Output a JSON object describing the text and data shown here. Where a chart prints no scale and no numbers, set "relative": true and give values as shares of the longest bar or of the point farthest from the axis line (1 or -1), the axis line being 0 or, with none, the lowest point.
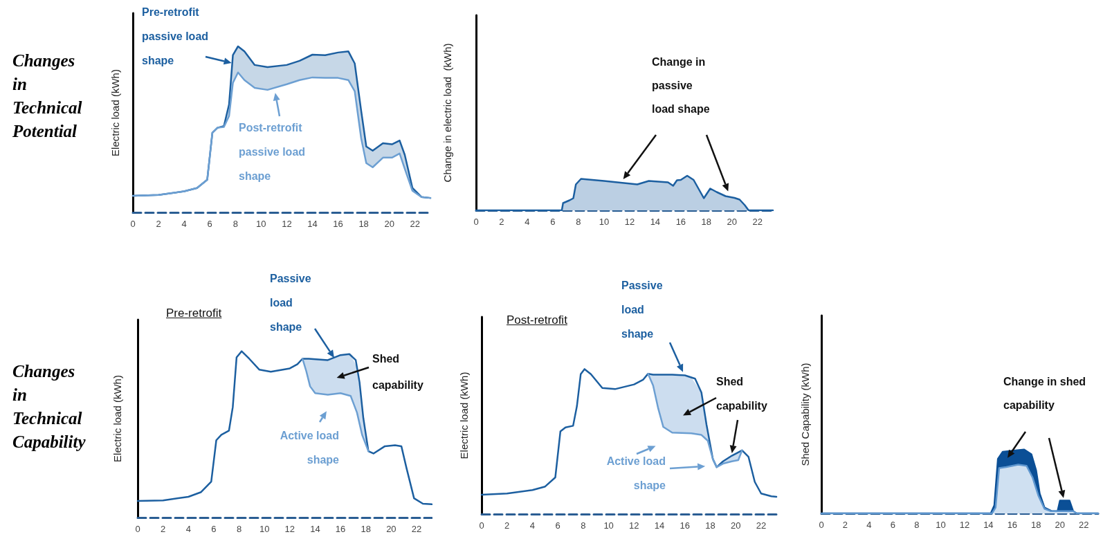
{
  "chart_data": [
    {
      "type": "line",
      "ylabel": "Electric load (kWh)",
      "relative": true,
      "xlim": [
        0,
        23.2
      ],
      "xticks": [
        0,
        2,
        4,
        6,
        8,
        10,
        12,
        14,
        16,
        18,
        20,
        22
      ],
      "series": [
        {
          "type": "area",
          "color": "#1c5fa0",
          "x": [
            0,
            2,
            4,
            5,
            5.8,
            6.2,
            6.6,
            7.1,
            7.5,
            7.8,
            8.2,
            8.7,
            9.5,
            10.5,
            12,
            13,
            14,
            15,
            16,
            16.8,
            17.3,
            17.8,
            18.2,
            18.7,
            19.5,
            20.2,
            20.8,
            21.2,
            21.8,
            22.5,
            23.2
          ],
          "values": [
            0.1,
            0.105,
            0.127,
            0.147,
            0.197,
            0.48,
            0.51,
            0.52,
            0.65,
            0.947,
            1,
            0.97,
            0.888,
            0.875,
            0.888,
            0.913,
            0.95,
            0.947,
            0.963,
            0.97,
            0.897,
            0.613,
            0.397,
            0.372,
            0.417,
            0.41,
            0.433,
            0.347,
            0.147,
            0.093,
            0.087
          ]
        },
        {
          "color": "#6c9fd2",
          "x": [
            0,
            2,
            4,
            5,
            5.8,
            6.2,
            6.6,
            7.1,
            7.5,
            7.8,
            8.2,
            8.7,
            9.5,
            10.5,
            12,
            13,
            14,
            15,
            16,
            16.8,
            17.3,
            17.8,
            18.2,
            18.7,
            19.5,
            20.2,
            20.8,
            21.2,
            21.8,
            22.5,
            23.2
          ],
          "values": [
            0.1,
            0.105,
            0.127,
            0.147,
            0.197,
            0.48,
            0.51,
            0.515,
            0.58,
            0.78,
            0.843,
            0.797,
            0.75,
            0.738,
            0.772,
            0.797,
            0.813,
            0.81,
            0.81,
            0.797,
            0.73,
            0.447,
            0.297,
            0.272,
            0.33,
            0.33,
            0.355,
            0.263,
            0.13,
            0.093,
            0.087
          ]
        }
      ],
      "annotations": [
        "Changes in Technical Potential",
        "Pre-retrofit passive load shape",
        "Post-retrofit passive load shape"
      ]
    },
    {
      "type": "area",
      "ylabel": "Change in electric load  (kWh)",
      "relative": true,
      "xlim": [
        0,
        23.2
      ],
      "xticks": [
        0,
        2,
        4,
        6,
        8,
        10,
        12,
        14,
        16,
        18,
        20,
        22
      ],
      "series": [
        {
          "color": "#1c5fa0",
          "x": [
            0,
            6.7,
            6.8,
            7.3,
            7.6,
            7.8,
            8.2,
            10,
            12.6,
            13.5,
            15,
            15.4,
            15.7,
            16,
            16.5,
            17,
            17.5,
            17.8,
            18.3,
            18.8,
            19.5,
            20.2,
            20.6,
            21,
            21.3,
            23.2
          ],
          "values": [
            0,
            0,
            0.21,
            0.29,
            0.35,
            0.75,
            0.91,
            0.85,
            0.75,
            0.85,
            0.81,
            0.71,
            0.87,
            0.88,
            1,
            0.88,
            0.55,
            0.35,
            0.63,
            0.53,
            0.41,
            0.36,
            0.31,
            0.15,
            0,
            0
          ]
        }
      ],
      "annotations": [
        "Change in passive load shape"
      ]
    },
    {
      "type": "line",
      "title": "Pre-retrofit",
      "ylabel": "Electric load (kWh)",
      "relative": true,
      "xlim": [
        0,
        23.2
      ],
      "xticks": [
        0,
        2,
        4,
        6,
        8,
        10,
        12,
        14,
        16,
        18,
        20,
        22
      ],
      "series": [
        {
          "color": "#1c5fa0",
          "x": [
            0,
            2,
            4,
            5,
            5.8,
            6.2,
            6.6,
            7.2,
            7.5,
            7.8,
            8.2,
            8.8,
            9.6,
            10.5,
            12,
            12.6,
            13,
            13.5,
            15,
            16,
            16.7,
            17.2,
            17.5,
            17.8,
            18.2,
            18.6,
            19.5,
            20.3,
            20.8,
            21.2,
            21.8,
            22.5,
            23.2
          ],
          "values": [
            0.1,
            0.103,
            0.125,
            0.153,
            0.216,
            0.465,
            0.498,
            0.523,
            0.664,
            0.963,
            1,
            0.955,
            0.889,
            0.877,
            0.897,
            0.922,
            0.955,
            0.955,
            0.947,
            0.977,
            0.983,
            0.947,
            0.814,
            0.598,
            0.399,
            0.385,
            0.429,
            0.435,
            0.429,
            0.299,
            0.116,
            0.083,
            0.08
          ]
        },
        {
          "color": "#6c9fd2",
          "x": [
            13,
            13.3,
            13.6,
            14,
            15,
            16,
            16.8,
            17.3,
            17.7,
            18.2
          ],
          "values": [
            0.955,
            0.88,
            0.789,
            0.748,
            0.739,
            0.748,
            0.731,
            0.631,
            0.498,
            0.399
          ],
          "lower": [
            0.955,
            0.88,
            0.789,
            0.748,
            0.739,
            0.748,
            0.731,
            0.631,
            0.498,
            0.399
          ],
          "upper": [
            0.955,
            0.955,
            0.955,
            0.952,
            0.947,
            0.977,
            0.98,
            0.903,
            0.67,
            0.399
          ]
        }
      ],
      "annotations": [
        "Passive load shape",
        "Shed capability",
        "Active load shape",
        "Changes in Technical Capability"
      ]
    },
    {
      "type": "line",
      "title": "Post-retrofit",
      "ylabel": "Electric load (kWh)",
      "relative": true,
      "xlim": [
        0,
        23.2
      ],
      "xticks": [
        0,
        2,
        4,
        6,
        8,
        10,
        12,
        14,
        16,
        18,
        20,
        22
      ],
      "series": [
        {
          "color": "#1c5fa0",
          "x": [
            0,
            2,
            4,
            5,
            5.8,
            6.2,
            6.6,
            7.2,
            7.5,
            7.8,
            8.1,
            8.6,
            9.5,
            10.5,
            12,
            12.7,
            13.1,
            13.5,
            15,
            16,
            16.8,
            17.3,
            17.7,
            18.2,
            18.5,
            19,
            19.7,
            20.5,
            21,
            21.5,
            22,
            22.8,
            23.2
          ],
          "values": [
            0.134,
            0.142,
            0.166,
            0.19,
            0.253,
            0.57,
            0.598,
            0.609,
            0.744,
            0.965,
            1,
            0.965,
            0.87,
            0.862,
            0.894,
            0.926,
            0.968,
            0.962,
            0.962,
            0.957,
            0.934,
            0.839,
            0.617,
            0.38,
            0.324,
            0.364,
            0.403,
            0.44,
            0.396,
            0.222,
            0.142,
            0.123,
            0.119
          ]
        },
        {
          "color": "#6c9fd2",
          "x": [
            13.1,
            13.5,
            13.9,
            14.3,
            15,
            16.5,
            17.3,
            17.8,
            18.2,
            18.5,
            19,
            19.7,
            20.2,
            20.5
          ],
          "values": [
            0.968,
            0.886,
            0.728,
            0.601,
            0.562,
            0.557,
            0.546,
            0.506,
            0.38,
            0.324,
            0.348,
            0.364,
            0.372,
            0.44
          ],
          "lower": [
            0.968,
            0.886,
            0.728,
            0.601,
            0.562,
            0.557,
            0.546,
            0.506,
            0.38,
            0.324,
            0.348,
            0.364,
            0.372,
            0.44
          ],
          "upper": [
            0.968,
            0.962,
            0.962,
            0.962,
            0.962,
            0.943,
            0.839,
            0.57,
            0.38,
            0.324,
            0.364,
            0.403,
            0.426,
            0.44
          ]
        }
      ],
      "annotations": [
        "Passive load shape",
        "Shed capability",
        "Active load shape"
      ]
    },
    {
      "type": "area",
      "ylabel": "Shed Capability (kWh)",
      "relative": true,
      "xlim": [
        0,
        23.2
      ],
      "xticks": [
        0,
        2,
        4,
        6,
        8,
        10,
        12,
        14,
        16,
        18,
        20,
        22
      ],
      "series": [
        {
          "color": "#0b4f96",
          "x": [
            0,
            14.2,
            14.5,
            14.8,
            15.2,
            16,
            17,
            17.6,
            18,
            18.3,
            18.7,
            19.3,
            19.8,
            20,
            20.8,
            21.1,
            21.4,
            23.2
          ],
          "values": [
            0,
            0,
            0.127,
            0.855,
            0.964,
            0.982,
            1,
            0.927,
            0.673,
            0.309,
            0.091,
            0.036,
            0.036,
            0.2,
            0.2,
            0.036,
            0,
            0
          ]
        },
        {
          "color": "#5f97cf",
          "x": [
            0,
            14.3,
            14.6,
            14.9,
            15.5,
            16.5,
            17.2,
            17.7,
            18.2,
            18.7,
            19.2,
            20.5,
            21.1,
            21.4,
            23.2
          ],
          "values": [
            0,
            0,
            0.09,
            0.709,
            0.727,
            0.764,
            0.745,
            0.564,
            0.273,
            0.073,
            0.036,
            0.036,
            0.036,
            0,
            0
          ]
        }
      ],
      "annotations": [
        "Change in shed capability"
      ]
    }
  ]
}
